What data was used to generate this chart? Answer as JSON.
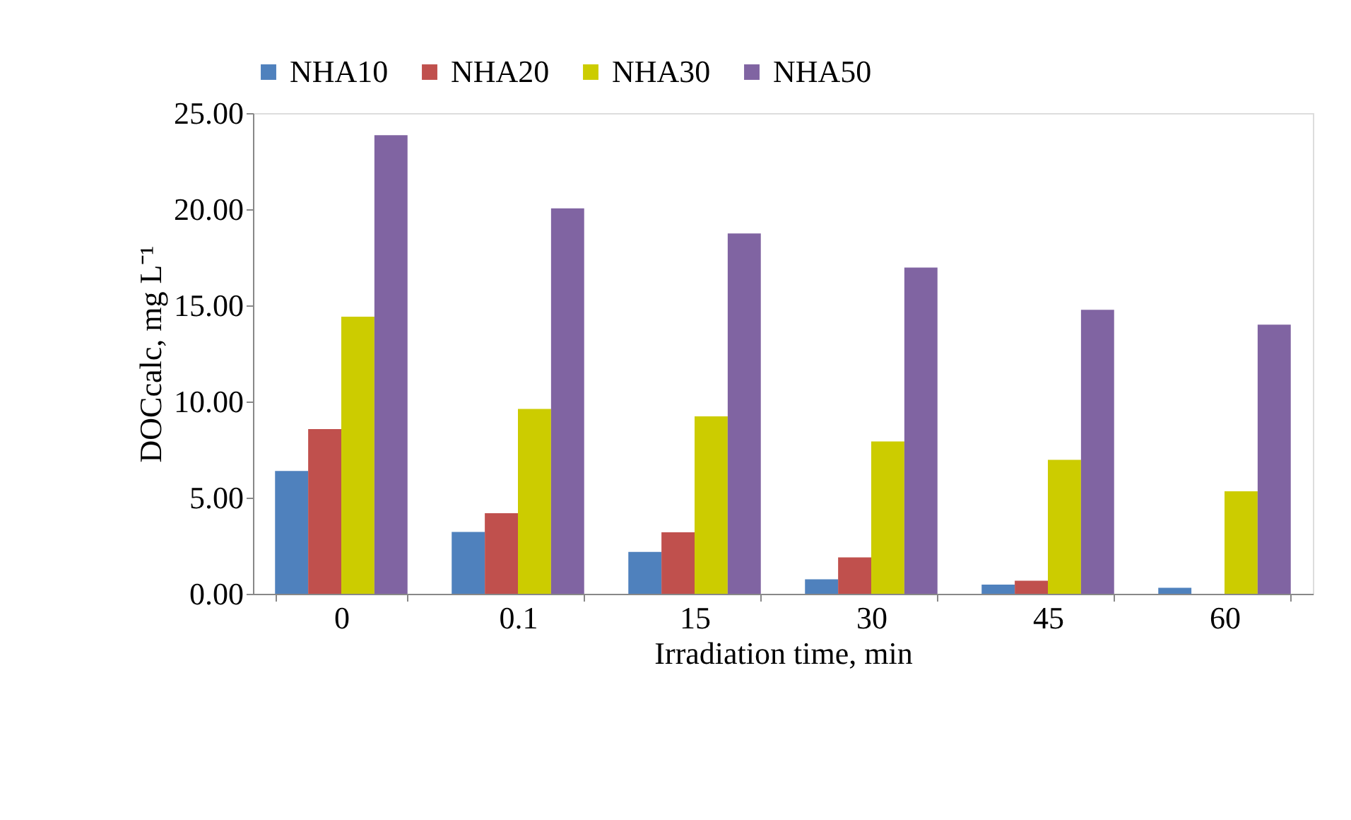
{
  "chart_data": {
    "type": "bar",
    "xlabel": "Irradiation time, min",
    "ylabel": "DOCcalc, mg L⁻¹",
    "categories": [
      "0",
      "0.1",
      "15",
      "30",
      "45",
      "60"
    ],
    "series": [
      {
        "name": "NHA10",
        "color": "#4f81bd",
        "values": [
          6.39,
          3.22,
          2.18,
          0.75,
          0.48,
          0.31
        ]
      },
      {
        "name": "NHA20",
        "color": "#c0504d",
        "values": [
          8.57,
          4.19,
          3.2,
          1.89,
          0.68,
          0.0
        ]
      },
      {
        "name": "NHA30",
        "color": "#cccc00",
        "values": [
          14.41,
          9.61,
          9.23,
          7.92,
          6.97,
          5.33
        ]
      },
      {
        "name": "NHA50",
        "color": "#8064a2",
        "values": [
          23.85,
          20.05,
          18.74,
          16.97,
          14.77,
          14.0
        ]
      }
    ],
    "ylim": [
      0,
      25
    ],
    "yticks": [
      {
        "value": 0,
        "label": "0.00"
      },
      {
        "value": 5,
        "label": "5.00"
      },
      {
        "value": 10,
        "label": "10.00"
      },
      {
        "value": 15,
        "label": "15.00"
      },
      {
        "value": 20,
        "label": "20.00"
      },
      {
        "value": 25,
        "label": "25.00"
      }
    ],
    "legend": "top",
    "grid": false
  }
}
